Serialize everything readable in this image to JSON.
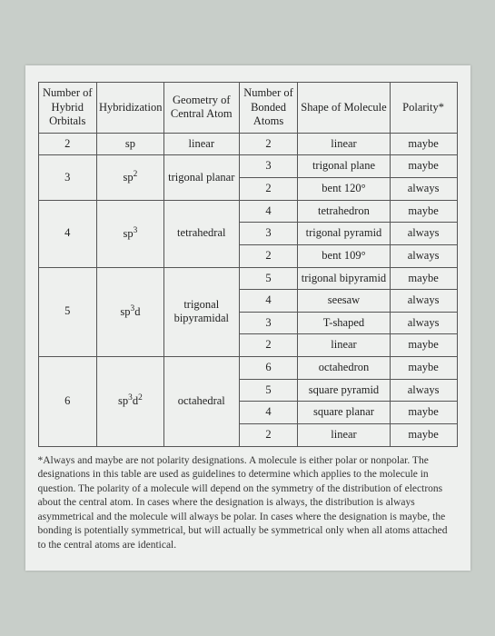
{
  "headers": [
    "Number of Hybrid Orbitals",
    "Hybridization",
    "Geometry of Central Atom",
    "Number of Bonded Atoms",
    "Shape of Molecule",
    "Polarity*"
  ],
  "col_widths": [
    "14%",
    "16%",
    "18%",
    "14%",
    "22%",
    "16%"
  ],
  "groups": [
    {
      "orbitals": "2",
      "hybrid_html": "sp",
      "geometry": "linear",
      "rows": [
        {
          "bonded": "2",
          "shape": "linear",
          "polarity": "maybe"
        }
      ]
    },
    {
      "orbitals": "3",
      "hybrid_html": "sp<sup>2</sup>",
      "geometry": "trigonal planar",
      "rows": [
        {
          "bonded": "3",
          "shape": "trigonal plane",
          "polarity": "maybe"
        },
        {
          "bonded": "2",
          "shape": "bent 120°",
          "polarity": "always"
        }
      ]
    },
    {
      "orbitals": "4",
      "hybrid_html": "sp<sup>3</sup>",
      "geometry": "tetrahedral",
      "rows": [
        {
          "bonded": "4",
          "shape": "tetrahedron",
          "polarity": "maybe"
        },
        {
          "bonded": "3",
          "shape": "trigonal pyramid",
          "polarity": "always"
        },
        {
          "bonded": "2",
          "shape": "bent 109°",
          "polarity": "always"
        }
      ]
    },
    {
      "orbitals": "5",
      "hybrid_html": "sp<sup>3</sup>d",
      "geometry": "trigonal bipyramidal",
      "rows": [
        {
          "bonded": "5",
          "shape": "trigonal bipyramid",
          "polarity": "maybe"
        },
        {
          "bonded": "4",
          "shape": "seesaw",
          "polarity": "always"
        },
        {
          "bonded": "3",
          "shape": "T-shaped",
          "polarity": "always"
        },
        {
          "bonded": "2",
          "shape": "linear",
          "polarity": "maybe"
        }
      ]
    },
    {
      "orbitals": "6",
      "hybrid_html": "sp<sup>3</sup>d<sup>2</sup>",
      "geometry": "octahedral",
      "rows": [
        {
          "bonded": "6",
          "shape": "octahedron",
          "polarity": "maybe"
        },
        {
          "bonded": "5",
          "shape": "square pyramid",
          "polarity": "always"
        },
        {
          "bonded": "4",
          "shape": "square planar",
          "polarity": "maybe"
        },
        {
          "bonded": "2",
          "shape": "linear",
          "polarity": "maybe"
        }
      ]
    }
  ],
  "footnote": "*Always and maybe are not polarity designations. A molecule is either polar or nonpolar. The designations in this table are used as guidelines to determine which applies to the molecule in question. The polarity of a molecule will depend on the symmetry of the distribution of electrons about the central atom. In cases where the designation is always, the distribution is always asymmetrical and the molecule will always be polar. In cases where the designation is maybe, the bonding is potentially symmetrical, but will actually be symmetrical only when all atoms attached to the central atoms are identical."
}
